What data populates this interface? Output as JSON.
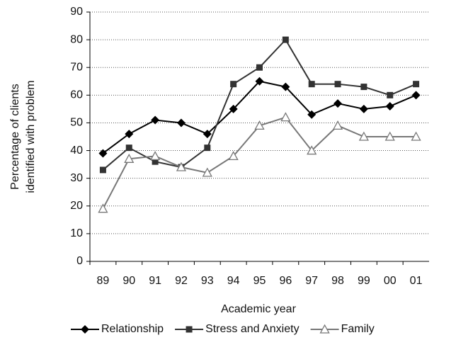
{
  "chart_data": {
    "type": "line",
    "ylabel": [
      "Percentage of clients",
      "identified with problem"
    ],
    "xlabel": "Academic year",
    "categories": [
      "89",
      "90",
      "91",
      "92",
      "93",
      "94",
      "95",
      "96",
      "97",
      "98",
      "99",
      "00",
      "01"
    ],
    "series": [
      {
        "name": "Relationship",
        "color": "#000000",
        "marker": "diamond",
        "values": [
          39,
          46,
          51,
          50,
          46,
          55,
          65,
          63,
          53,
          57,
          55,
          56,
          60
        ]
      },
      {
        "name": "Stress and Anxiety",
        "color": "#333333",
        "marker": "square",
        "values": [
          33,
          41,
          36,
          34,
          41,
          64,
          70,
          80,
          64,
          64,
          63,
          60,
          64
        ]
      },
      {
        "name": "Family",
        "color": "#777777",
        "marker": "triangle",
        "values": [
          19,
          37,
          38,
          34,
          32,
          38,
          49,
          52,
          40,
          49,
          45,
          45,
          45
        ]
      }
    ],
    "ylim": [
      0,
      90
    ],
    "yticks": [
      0,
      10,
      20,
      30,
      40,
      50,
      60,
      70,
      80,
      90
    ],
    "grid": true,
    "legend": "bottom"
  }
}
